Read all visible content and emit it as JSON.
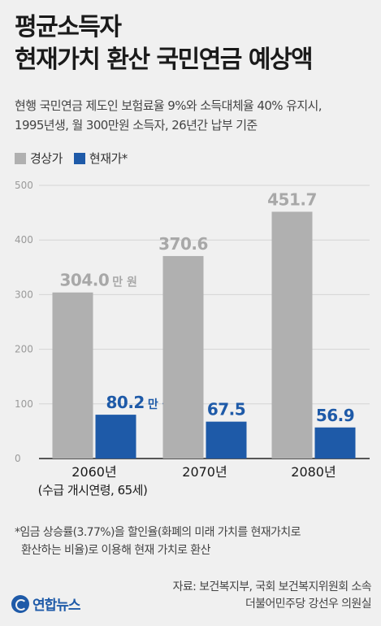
{
  "header": {
    "title_line1": "평균소득자",
    "title_line2": "현재가치 환산 국민연금 예상액",
    "subtitle_line1": "현행 국민연금 제도인 보험료율 9%와 소득대체율 40% 유지시,",
    "subtitle_line2": "1995년생, 월 300만원 소득자, 26년간 납부 기준"
  },
  "legend": {
    "items": [
      {
        "label": "경상가",
        "color": "#b0b0b0"
      },
      {
        "label": "현재가*",
        "color": "#1e5aa8"
      }
    ]
  },
  "chart_data": {
    "type": "bar",
    "categories": [
      "2060년",
      "2070년",
      "2080년"
    ],
    "category_sublabels": [
      "(수급 개시연령, 65세)",
      "",
      ""
    ],
    "series": [
      {
        "name": "경상가",
        "color": "#b0b0b0",
        "values": [
          304.0,
          370.6,
          451.7
        ]
      },
      {
        "name": "현재가*",
        "color": "#1e5aa8",
        "values": [
          80.2,
          67.5,
          56.9
        ]
      }
    ],
    "value_labels": [
      [
        "304.0",
        "370.6",
        "451.7"
      ],
      [
        "80.2",
        "67.5",
        "56.9"
      ]
    ],
    "unit_label": "만 원",
    "ylim": [
      0,
      500
    ],
    "yticks": [
      0,
      100,
      200,
      300,
      400,
      500
    ],
    "grid": true,
    "xlabel": "",
    "ylabel": ""
  },
  "footnote": {
    "line1": "*임금 상승률(3.77%)을 할인율(화폐의 미래 가치를 현재가치로",
    "line2": "환산하는 비율)로 이용해 현재 가치로 환산"
  },
  "source": {
    "line1": "자료: 보건복지부, 국회 보건복지위원회 소속",
    "line2": "더불어민주당 강선우 의원실"
  },
  "logo": {
    "text": "연합뉴스",
    "icon": "yonhap-logo-icon"
  }
}
